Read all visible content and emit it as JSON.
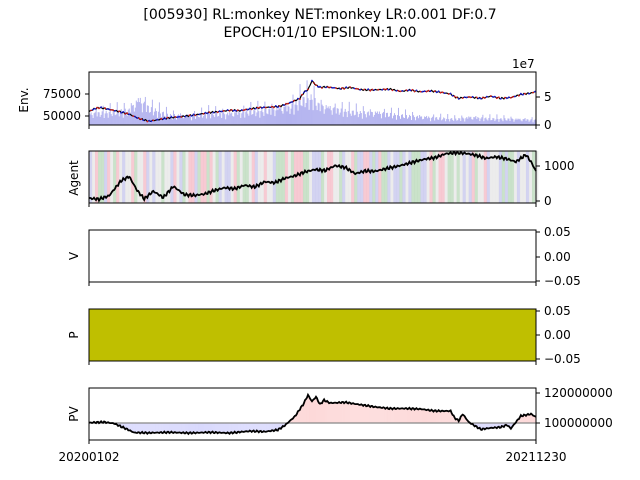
{
  "chart_data": {
    "type": "line",
    "title_line1": "[005930] RL:monkey NET:monkey LR:0.001 DF:0.7",
    "title_line2": "EPOCH:01/10 EPSILON:1.00",
    "x_start_label": "20200102",
    "x_end_label": "20211230",
    "panels": [
      {
        "id": "env",
        "ylabel": "Env.",
        "yticks_left": [
          50000,
          75000
        ],
        "yticks_left_labels": [
          "50000",
          "75000"
        ],
        "yticks_right": [
          0,
          5
        ],
        "yticks_right_labels": [
          "0",
          "5"
        ],
        "right_offset_label": "1e7",
        "series": [
          {
            "name": "price",
            "color": "#000000",
            "x": [
              0,
              5,
              10,
              16,
              22,
              30,
              40,
              50,
              60,
              70,
              80,
              90,
              100,
              110,
              120,
              130,
              140,
              150,
              160,
              170,
              180,
              190,
              200,
              210,
              214,
              218,
              222,
              226,
              230,
              236,
              244,
              250,
              260,
              270,
              280,
              290,
              300,
              310,
              320,
              330,
              340,
              350,
              360,
              364,
              368,
              372,
              380,
              390,
              400,
              410,
              420,
              430,
              440,
              445
            ],
            "values": [
              55000,
              58000,
              59500,
              58500,
              57000,
              55000,
              52000,
              47000,
              44000,
              46000,
              48000,
              49000,
              50500,
              52000,
              54000,
              55000,
              56500,
              56000,
              58000,
              59500,
              60000,
              61000,
              65000,
              70000,
              77000,
              80000,
              90000,
              85000,
              82500,
              83000,
              82000,
              81000,
              82500,
              80000,
              79500,
              80000,
              80500,
              78000,
              79500,
              77500,
              78500,
              77000,
              75000,
              72000,
              70000,
              71000,
              71500,
              70000,
              72500,
              70000,
              71000,
              74500,
              76000,
              78000
            ]
          },
          {
            "name": "volume",
            "color": "#8a8ae6",
            "x": [
              0,
              20,
              40,
              50,
              60,
              80,
              100,
              120,
              140,
              160,
              180,
              200,
              212,
              222,
              230,
              250,
              270,
              290,
              310,
              330,
              350,
              365,
              380,
              400,
              420,
              445
            ],
            "values": [
              22000000,
              26000000,
              30000000,
              50000000,
              34000000,
              20000000,
              18000000,
              24000000,
              22000000,
              28000000,
              30000000,
              36000000,
              52000000,
              55000000,
              38000000,
              30000000,
              25000000,
              24000000,
              20000000,
              16000000,
              14000000,
              12000000,
              15000000,
              13000000,
              12000000,
              10000000
            ]
          }
        ]
      },
      {
        "id": "agent",
        "ylabel": "Agent",
        "yticks_right": [
          0,
          1000
        ],
        "yticks_right_labels": [
          "0",
          "1000"
        ],
        "series": [
          {
            "name": "holdings",
            "color": "#000000",
            "x": [
              0,
              10,
              20,
              32,
              40,
              48,
              55,
              64,
              74,
              84,
              95,
              105,
              115,
              125,
              135,
              145,
              155,
              165,
              175,
              185,
              195,
              205,
              215,
              225,
              235,
              245,
              255,
              265,
              275,
              285,
              295,
              305,
              315,
              325,
              335,
              345,
              355,
              365,
              375,
              385,
              395,
              405,
              415,
              425,
              435,
              440,
              445
            ],
            "values": [
              80,
              50,
              150,
              580,
              700,
              300,
              60,
              280,
              100,
              420,
              180,
              160,
              200,
              300,
              380,
              350,
              450,
              400,
              550,
              520,
              650,
              720,
              830,
              900,
              870,
              1010,
              960,
              780,
              860,
              850,
              920,
              980,
              1050,
              1130,
              1200,
              1240,
              1350,
              1380,
              1360,
              1310,
              1220,
              1260,
              1210,
              1120,
              1320,
              1120,
              850
            ]
          }
        ]
      },
      {
        "id": "v",
        "ylabel": "V",
        "yticks_right": [
          -0.05,
          0.0,
          0.05
        ],
        "yticks_right_labels": [
          "−0.05",
          "0.00",
          "0.05"
        ],
        "series": []
      },
      {
        "id": "p",
        "ylabel": "P",
        "yticks_right": [
          -0.05,
          0.0,
          0.05
        ],
        "yticks_right_labels": [
          "−0.05",
          "0.00",
          "0.05"
        ],
        "fill_color": "#bfbf00",
        "series": []
      },
      {
        "id": "pv",
        "ylabel": "PV",
        "yticks_right": [
          100000000,
          120000000
        ],
        "yticks_right_labels": [
          "100000000",
          "120000000"
        ],
        "baseline": 100000000,
        "above_color": "#fdd9d9",
        "below_color": "#d9d9fd",
        "series": [
          {
            "name": "portfolio_value",
            "color": "#000000",
            "x": [
              0,
              15,
              25,
              35,
              45,
              60,
              80,
              100,
              120,
              140,
              160,
              175,
              188,
              195,
              205,
              213,
              218,
              222,
              226,
              230,
              234,
              240,
              255,
              270,
              285,
              300,
              315,
              330,
              345,
              360,
              364,
              368,
              372,
              378,
              390,
              400,
              410,
              416,
              420,
              430,
              440,
              445
            ],
            "values": [
              100200000,
              100600000,
              99700000,
              96700000,
              93600000,
              93400000,
              93800000,
              93300000,
              93800000,
              93300000,
              94600000,
              94200000,
              95400000,
              98400000,
              104400000,
              112200000,
              118600000,
              114400000,
              117400000,
              112400000,
              115200000,
              113300000,
              113800000,
              112200000,
              110700000,
              109600000,
              109700000,
              109300000,
              108000000,
              108000000,
              103500000,
              101500000,
              106000000,
              100600000,
              95800000,
              96700000,
              97200000,
              98700000,
              96400000,
              104700000,
              106000000,
              104000000
            ]
          }
        ]
      }
    ],
    "agent_action_colors": [
      "#f4b8c4",
      "#b8d8b8",
      "#c4c4ec",
      "#e6e6e6"
    ]
  }
}
